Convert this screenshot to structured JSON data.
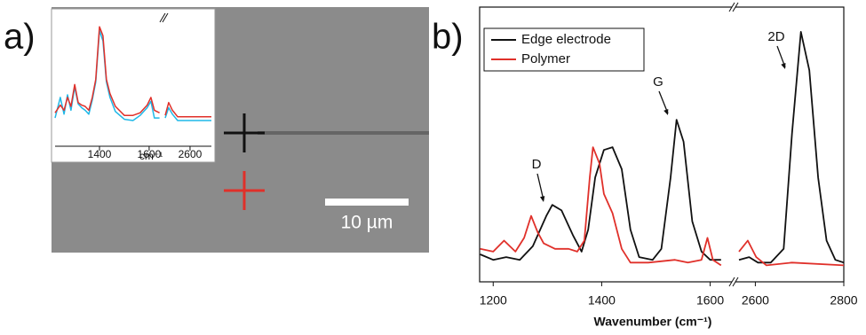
{
  "figure": {
    "panel_labels": [
      "a)",
      "b)"
    ],
    "scale_bar_label": "10 µm"
  },
  "chart_data": [
    {
      "type": "line",
      "xlabel": "Wavenumber (cm⁻¹)",
      "legend": "upper left",
      "annotations": [
        "D",
        "G",
        "2D"
      ],
      "xlim": [
        1175,
        2800
      ],
      "xbreak": [
        1640,
        2555
      ],
      "ylim": [
        0,
        100
      ],
      "xticks": [
        1200,
        1400,
        1600,
        2600,
        2800
      ],
      "series": [
        {
          "name": "Edge electrode",
          "color": "#111111",
          "x": [
            1176,
            1200,
            1224,
            1249,
            1273,
            1298,
            1309,
            1326,
            1347,
            1363,
            1375,
            1388,
            1404,
            1420,
            1437,
            1453,
            1469,
            1494,
            1510,
            1527,
            1538,
            1551,
            1567,
            1584,
            1600,
            1620,
            2563,
            2586,
            2606,
            2635,
            2664,
            2683,
            2703,
            2722,
            2742,
            2761,
            2781,
            2800
          ],
          "values": [
            10,
            8,
            9,
            8,
            13,
            24,
            28,
            26,
            17,
            11,
            19,
            38,
            48,
            49,
            41,
            19,
            9,
            8,
            12,
            38,
            59,
            51,
            22,
            11,
            8,
            8,
            8,
            9,
            7,
            7,
            12,
            54,
            91,
            77,
            38,
            15,
            8,
            7
          ]
        },
        {
          "name": "Polymer",
          "color": "#e0302a",
          "x": [
            1176,
            1200,
            1220,
            1241,
            1257,
            1270,
            1282,
            1293,
            1314,
            1339,
            1355,
            1368,
            1378,
            1384,
            1396,
            1404,
            1420,
            1437,
            1453,
            1486,
            1535,
            1559,
            1584,
            1595,
            1605,
            1620,
            2563,
            2583,
            2602,
            2625,
            2683,
            2800
          ],
          "values": [
            12,
            11,
            15,
            11,
            16,
            24,
            18,
            14,
            12,
            12,
            11,
            15,
            38,
            49,
            43,
            32,
            25,
            12,
            7,
            7,
            8,
            7,
            8,
            16,
            8,
            6,
            11,
            15,
            9,
            6,
            7,
            6
          ]
        }
      ]
    },
    {
      "type": "line",
      "xlabel": "cm⁻¹",
      "xlim": [
        1221,
        2686
      ],
      "xbreak": [
        1654,
        2500
      ],
      "ylim": [
        0,
        100
      ],
      "xticks": [
        1400,
        1600,
        2600
      ],
      "series": [
        {
          "color": "#1fb8e8",
          "x": [
            1221,
            1242,
            1257,
            1271,
            1285,
            1300,
            1314,
            1328,
            1342,
            1357,
            1371,
            1385,
            1400,
            1414,
            1428,
            1442,
            1464,
            1500,
            1535,
            1564,
            1592,
            1607,
            1621,
            1642,
            2500,
            2514,
            2529,
            2550,
            2686
          ],
          "values": [
            22,
            38,
            25,
            40,
            28,
            46,
            33,
            30,
            28,
            25,
            36,
            50,
            90,
            82,
            50,
            38,
            27,
            21,
            20,
            24,
            30,
            35,
            22,
            22,
            22,
            30,
            25,
            20,
            20
          ]
        },
        {
          "color": "#e0302a",
          "x": [
            1221,
            1242,
            1257,
            1271,
            1285,
            1300,
            1314,
            1328,
            1342,
            1357,
            1371,
            1385,
            1400,
            1414,
            1428,
            1442,
            1464,
            1500,
            1535,
            1564,
            1592,
            1607,
            1621,
            1642,
            2500,
            2514,
            2529,
            2550,
            2686
          ],
          "values": [
            26,
            32,
            28,
            38,
            31,
            48,
            34,
            32,
            31,
            28,
            38,
            52,
            93,
            86,
            52,
            41,
            31,
            24,
            24,
            26,
            32,
            38,
            28,
            26,
            24,
            34,
            28,
            23,
            23
          ]
        }
      ]
    }
  ]
}
